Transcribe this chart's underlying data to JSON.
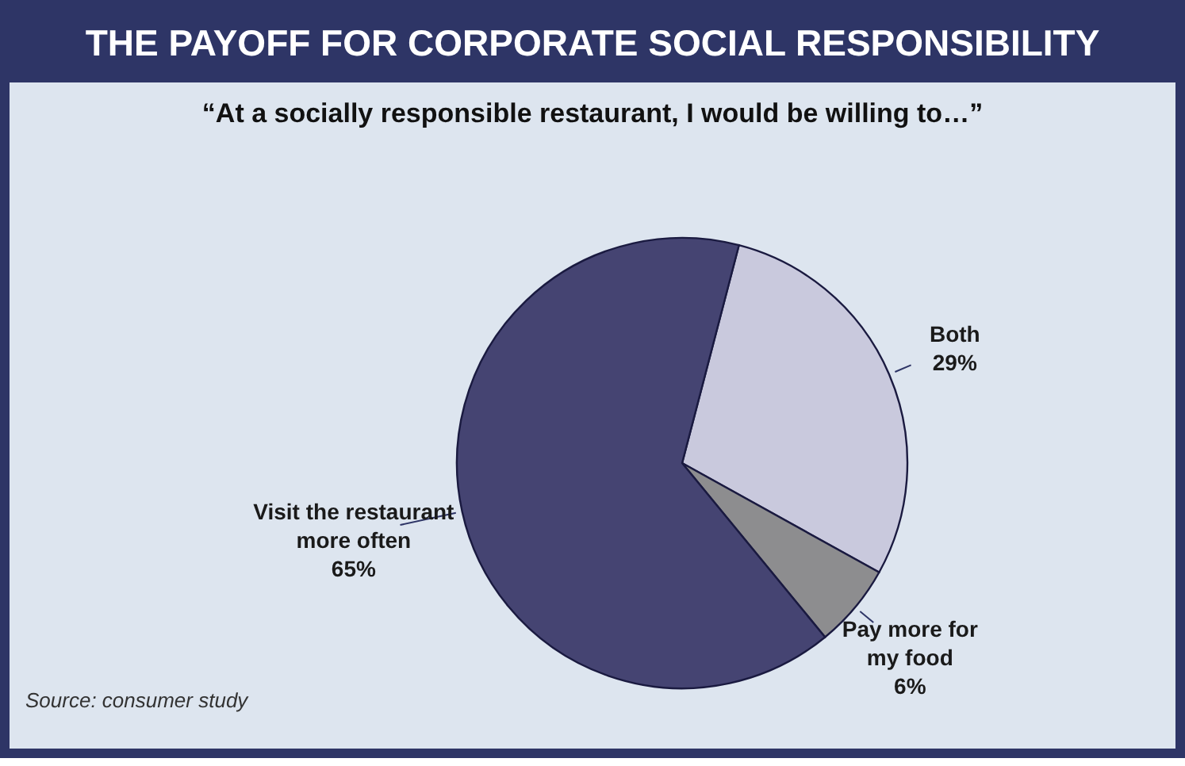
{
  "chart_data": {
    "type": "pie",
    "title": "THE PAYOFF FOR CORPORATE SOCIAL RESPONSIBILITY",
    "subtitle": "“At a socially responsible restaurant, I would be willing to…”",
    "categories": [
      "Both",
      "Pay more for my food",
      "Visit the restaurant more often"
    ],
    "values": [
      29,
      6,
      65
    ],
    "value_labels": [
      "29%",
      "6%",
      "65%"
    ],
    "colors": [
      "#c9c9dd",
      "#8d8d8f",
      "#454472"
    ],
    "annotations": [
      "Source: consumer study"
    ],
    "legend": false
  }
}
